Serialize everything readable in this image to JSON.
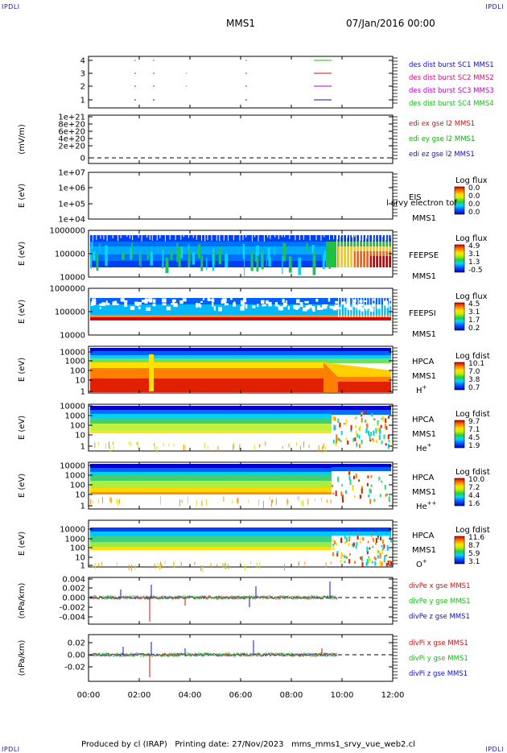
{
  "header": {
    "left_corner": "IPDLI",
    "right_corner": "IPDLI",
    "spacecraft": "MMS1",
    "date": "07/Jan/2016 00:00"
  },
  "footer": {
    "left_corner": "IPDLI",
    "right_corner": "IPDLI",
    "credit": "Produced by cl (IRAP)",
    "printing": "Printing date: 27/Nov/2023",
    "file": "mms_mms1_srvy_vue_web2.cl"
  },
  "chart_data": {
    "type": "heatmap",
    "x_ticks": [
      "00:00",
      "02:00",
      "04:00",
      "06:00",
      "08:00",
      "10:00",
      "12:00"
    ],
    "x_range_hours": [
      0,
      12
    ],
    "panels": [
      {
        "id": "burst",
        "yticks": [
          "4",
          "3",
          "2",
          "1"
        ],
        "ylabel": "",
        "legend": [
          {
            "text": "des dist burst SC1 MMS1",
            "color": "#1010c0"
          },
          {
            "text": "des dist burst SC2 MMS2",
            "color": "#d01070"
          },
          {
            "text": "des dist burst SC3 MMS3",
            "color": "#c000c0"
          },
          {
            "text": "des dist burst SC4 MMS4",
            "color": "#10c010"
          }
        ]
      },
      {
        "id": "edi",
        "yticks": [
          "1e+21",
          "8e+20",
          "6e+20",
          "4e+20",
          "2e+20",
          "0"
        ],
        "ylabel": "(mV/m)",
        "legend": [
          {
            "text": "edi ex gse l2 MMS1",
            "color": "#d01010"
          },
          {
            "text": "edi ey gse l2 MMS1",
            "color": "#10b010"
          },
          {
            "text": "edi ez gse l2 MMS1",
            "color": "#1010c0"
          }
        ]
      },
      {
        "id": "eis",
        "yticks": [
          "1e+07",
          "1e+06",
          "1e+05",
          "1e+04"
        ],
        "ylabel": "E (eV)",
        "labels": [
          "EIS",
          "MMS1"
        ],
        "overlay": "l srvy electron tof",
        "cbar_title": "Log flux",
        "cbar_ticks": [
          "0.0",
          "0.0",
          "0.0",
          "0.0"
        ]
      },
      {
        "id": "feepse",
        "yticks": [
          "1000000",
          "100000",
          "10000"
        ],
        "ylabel": "E (eV)",
        "labels": [
          "FEEPSE",
          "MMS1"
        ],
        "cbar_title": "Log flux",
        "cbar_ticks": [
          "4.9",
          "3.1",
          "1.3",
          "-0.5"
        ]
      },
      {
        "id": "feepsi",
        "yticks": [
          "1000000",
          "100000",
          "10000"
        ],
        "ylabel": "E (eV)",
        "labels": [
          "FEEPSI",
          "MMS1"
        ],
        "cbar_title": "Log flux",
        "cbar_ticks": [
          "4.5",
          "3.1",
          "1.7",
          "0.2"
        ]
      },
      {
        "id": "hpca_h",
        "yticks": [
          "10000",
          "1000",
          "100",
          "10",
          "1"
        ],
        "ylabel": "E (eV)",
        "labels": [
          "HPCA",
          "MMS1"
        ],
        "species": "H",
        "species_sup": "+",
        "cbar_title": "Log fdist",
        "cbar_ticks": [
          "10.1",
          "7.0",
          "3.8",
          "0.7"
        ]
      },
      {
        "id": "hpca_he",
        "yticks": [
          "10000",
          "1000",
          "100",
          "10",
          "1"
        ],
        "ylabel": "E (eV)",
        "labels": [
          "HPCA",
          "MMS1"
        ],
        "species": "He",
        "species_sup": "+",
        "cbar_title": "Log fdist",
        "cbar_ticks": [
          "9.7",
          "7.1",
          "4.5",
          "1.9"
        ]
      },
      {
        "id": "hpca_hepp",
        "yticks": [
          "10000",
          "1000",
          "100",
          "10",
          "1"
        ],
        "ylabel": "E (eV)",
        "labels": [
          "HPCA",
          "MMS1"
        ],
        "species": "He",
        "species_sup": "++",
        "cbar_title": "Log fdist",
        "cbar_ticks": [
          "10.0",
          "7.2",
          "4.4",
          "1.6"
        ]
      },
      {
        "id": "hpca_o",
        "yticks": [
          "10000",
          "1000",
          "100",
          "10",
          "1"
        ],
        "ylabel": "E (eV)",
        "labels": [
          "HPCA",
          "MMS1"
        ],
        "species": "O",
        "species_sup": "+",
        "cbar_title": "Log fdist",
        "cbar_ticks": [
          "11.6",
          "8.7",
          "5.9",
          "3.1"
        ]
      },
      {
        "id": "divpe",
        "yticks": [
          "0.004",
          "0.002",
          "0.000",
          "-0.002",
          "-0.004"
        ],
        "ylabel": "(nPa/km)",
        "legend": [
          {
            "text": "divPe x gse MMS1",
            "color": "#d01010"
          },
          {
            "text": "divPe y gse MMS1",
            "color": "#10c010"
          },
          {
            "text": "divPe z gse MMS1",
            "color": "#1010c0"
          }
        ]
      },
      {
        "id": "divpi",
        "yticks": [
          "0.02",
          "0.00",
          "-0.02"
        ],
        "ylabel": "(nPa/km)",
        "legend": [
          {
            "text": "divPi x gse MMS1",
            "color": "#d01010"
          },
          {
            "text": "divPi y gse MMS1",
            "color": "#10c010"
          },
          {
            "text": "divPi z gse MMS1",
            "color": "#1010c0"
          }
        ]
      }
    ]
  }
}
